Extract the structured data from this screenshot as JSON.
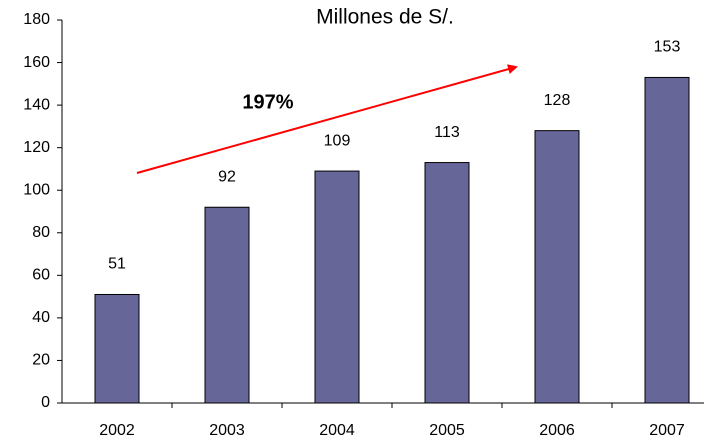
{
  "chart_data": {
    "type": "bar",
    "title": "Millones de S/.",
    "annotation": "197%",
    "categories": [
      "2002",
      "2003",
      "2004",
      "2005",
      "2006",
      "2007"
    ],
    "values": [
      51,
      92,
      109,
      113,
      128,
      153
    ],
    "color": "#666699",
    "ylim": [
      0,
      180
    ],
    "yticks": [
      0,
      20,
      40,
      60,
      80,
      100,
      120,
      140,
      160,
      180
    ],
    "grid": false
  }
}
